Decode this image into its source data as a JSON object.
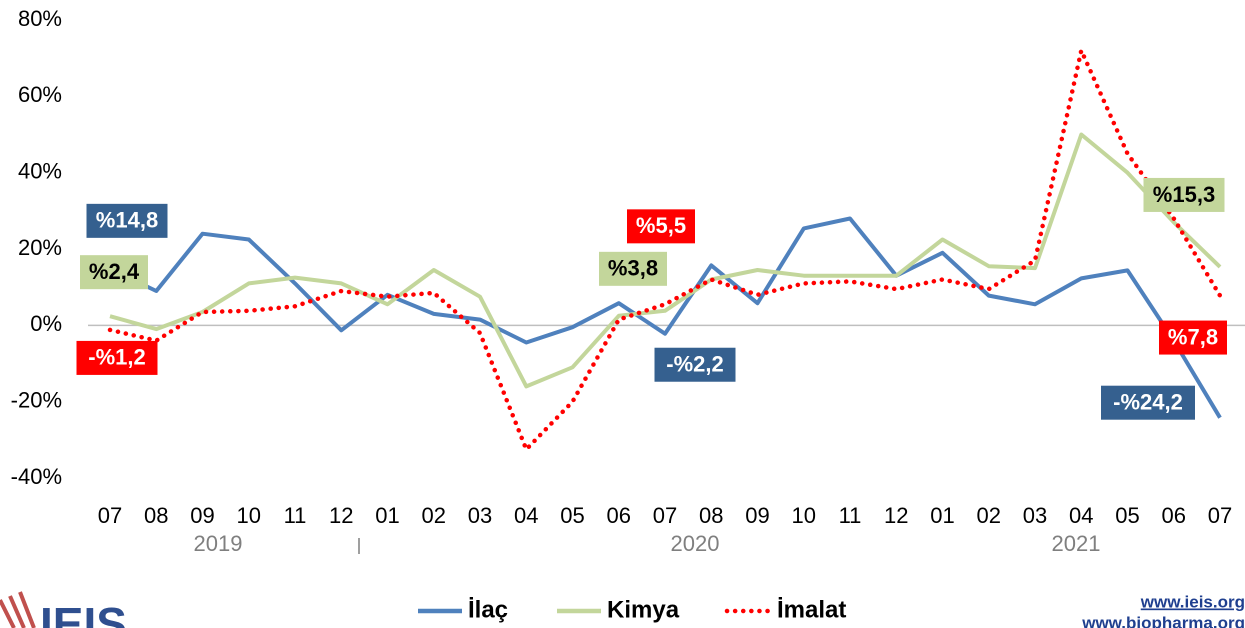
{
  "chart_data": {
    "type": "line",
    "categories": [
      "07",
      "08",
      "09",
      "10",
      "11",
      "12",
      "01",
      "02",
      "03",
      "04",
      "05",
      "06",
      "07",
      "08",
      "09",
      "10",
      "11",
      "12",
      "01",
      "02",
      "03",
      "04",
      "05",
      "06",
      "07"
    ],
    "year_labels": [
      "2019",
      "2020",
      "2021"
    ],
    "ylim": [
      -40,
      80
    ],
    "yticks": [
      {
        "value": -40,
        "label": "-40%"
      },
      {
        "value": -20,
        "label": "-20%"
      },
      {
        "value": 0,
        "label": "0%"
      },
      {
        "value": 20,
        "label": "20%"
      },
      {
        "value": 40,
        "label": "40%"
      },
      {
        "value": 60,
        "label": "60%"
      },
      {
        "value": 80,
        "label": "80%"
      }
    ],
    "grid": false,
    "legend": "bottom",
    "series": [
      {
        "name": "İlaç",
        "color": "#4f81bd",
        "label_color": "#35608f",
        "style": "solid",
        "values": [
          14.8,
          9,
          24,
          22.5,
          11,
          -1.3,
          8,
          3,
          1.5,
          -4.5,
          -0.5,
          5.8,
          -2.2,
          15.7,
          5.8,
          25.4,
          28,
          13,
          19,
          7.8,
          5.5,
          12.3,
          14.4,
          -4,
          -24.2
        ],
        "value_labels": [
          "%14,8",
          null,
          null,
          null,
          null,
          null,
          null,
          null,
          null,
          null,
          null,
          null,
          "-%2,2",
          null,
          null,
          null,
          null,
          null,
          null,
          null,
          null,
          null,
          null,
          null,
          "-%24,2"
        ]
      },
      {
        "name": "Kimya",
        "color": "#c3d69b",
        "label_color": "#c3d69b",
        "style": "solid",
        "values": [
          2.4,
          -1,
          3.5,
          11,
          12.5,
          11,
          5.5,
          14.5,
          7.5,
          -16,
          -11,
          2.5,
          3.8,
          12,
          14.5,
          13,
          13,
          13,
          22.5,
          15.5,
          15,
          50,
          40,
          27,
          15.3
        ],
        "value_labels": [
          "%2,4",
          null,
          null,
          null,
          null,
          null,
          null,
          null,
          null,
          null,
          null,
          null,
          "%3,8",
          null,
          null,
          null,
          null,
          null,
          null,
          null,
          null,
          null,
          null,
          null,
          "%15,3"
        ]
      },
      {
        "name": "İmalat",
        "color": "#ff0000",
        "label_color": "#ff0000",
        "style": "dotted",
        "values": [
          -1.2,
          -4,
          3.5,
          3.8,
          5,
          9,
          7.5,
          8.5,
          -2,
          -32.5,
          -20,
          1.5,
          5.5,
          12,
          8,
          11,
          11.5,
          9.5,
          12,
          9.5,
          17,
          72,
          45,
          28,
          7.8
        ],
        "value_labels": [
          "-%1,2",
          null,
          null,
          null,
          null,
          null,
          null,
          null,
          null,
          null,
          null,
          null,
          "%5,5",
          null,
          null,
          null,
          null,
          null,
          null,
          null,
          null,
          null,
          null,
          null,
          "%7,8"
        ]
      }
    ]
  },
  "footer": {
    "logo": "IEIS",
    "links": [
      "www.ieis.org",
      "www.biopharma.org"
    ]
  }
}
